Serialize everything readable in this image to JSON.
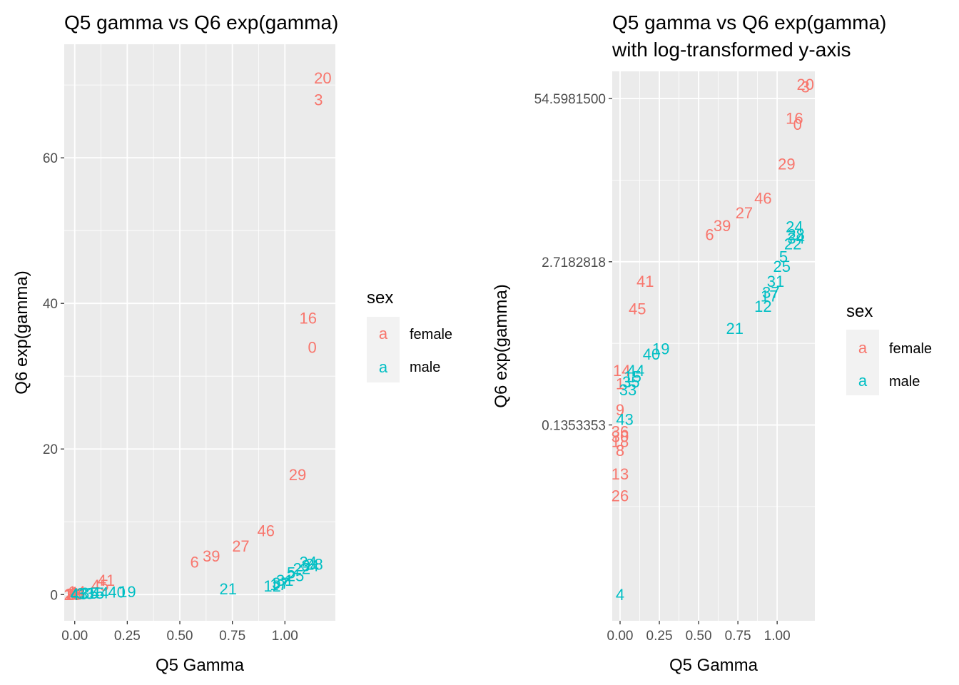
{
  "colors": {
    "female": "#F8766D",
    "male": "#00BFC4",
    "panel": "#EBEBEB",
    "grid": "#FFFFFF",
    "tick": "#333333"
  },
  "chart_data": [
    {
      "type": "scatter",
      "title": "Q5 gamma vs Q6 exp(gamma)",
      "xlabel": "Q5 Gamma",
      "ylabel": "Q6 exp(gamma)",
      "xlim": [
        -0.05,
        1.24
      ],
      "ylim": [
        -3.6,
        75.6
      ],
      "yscale": "linear",
      "x_ticks": [
        0,
        0.25,
        0.5,
        0.75,
        1
      ],
      "x_tick_labels": [
        "0.00",
        "0.25",
        "0.50",
        "0.75",
        "1.00"
      ],
      "y_ticks": [
        0,
        20,
        40,
        60
      ],
      "y_tick_labels": [
        "0",
        "20",
        "40",
        "60"
      ],
      "grid": true,
      "legend": {
        "title": "sex",
        "position": "right",
        "key_glyph": "a",
        "entries": [
          "female",
          "male"
        ]
      },
      "points": [
        {
          "label": "20",
          "x": 1.18,
          "y": 71.0,
          "group": "female"
        },
        {
          "label": "3",
          "x": 1.16,
          "y": 68.0,
          "group": "female"
        },
        {
          "label": "16",
          "x": 1.11,
          "y": 38.0,
          "group": "female"
        },
        {
          "label": "0",
          "x": 1.13,
          "y": 34.0,
          "group": "female"
        },
        {
          "label": "29",
          "x": 1.06,
          "y": 16.5,
          "group": "female"
        },
        {
          "label": "46",
          "x": 0.91,
          "y": 8.8,
          "group": "female"
        },
        {
          "label": "27",
          "x": 0.79,
          "y": 6.7,
          "group": "female"
        },
        {
          "label": "39",
          "x": 0.65,
          "y": 5.3,
          "group": "female"
        },
        {
          "label": "6",
          "x": 0.57,
          "y": 4.5,
          "group": "female"
        },
        {
          "label": "41",
          "x": 0.15,
          "y": 2.0,
          "group": "female"
        },
        {
          "label": "45",
          "x": 0.12,
          "y": 1.3,
          "group": "female"
        },
        {
          "label": "14",
          "x": 0.01,
          "y": 0.4,
          "group": "female"
        },
        {
          "label": "1",
          "x": 0.0,
          "y": 0.3,
          "group": "female"
        },
        {
          "label": "9",
          "x": 0.0,
          "y": 0.2,
          "group": "female"
        },
        {
          "label": "36",
          "x": 0.0,
          "y": 0.1,
          "group": "female"
        },
        {
          "label": "30",
          "x": 0.0,
          "y": 0.1,
          "group": "female"
        },
        {
          "label": "18",
          "x": -0.01,
          "y": 0.1,
          "group": "female"
        },
        {
          "label": "8",
          "x": -0.01,
          "y": 0.05,
          "group": "female"
        },
        {
          "label": "13",
          "x": -0.01,
          "y": 0.04,
          "group": "female"
        },
        {
          "label": "26",
          "x": -0.01,
          "y": 0.03,
          "group": "female"
        },
        {
          "label": "24",
          "x": 1.11,
          "y": 4.5,
          "group": "male"
        },
        {
          "label": "28",
          "x": 1.14,
          "y": 4.2,
          "group": "male"
        },
        {
          "label": "34",
          "x": 1.12,
          "y": 4.0,
          "group": "male"
        },
        {
          "label": "22",
          "x": 1.08,
          "y": 3.6,
          "group": "male"
        },
        {
          "label": "5",
          "x": 1.03,
          "y": 3.0,
          "group": "male"
        },
        {
          "label": "25",
          "x": 1.05,
          "y": 2.6,
          "group": "male"
        },
        {
          "label": "31",
          "x": 1.0,
          "y": 2.0,
          "group": "male"
        },
        {
          "label": "37",
          "x": 0.98,
          "y": 1.6,
          "group": "male"
        },
        {
          "label": "17",
          "x": 0.97,
          "y": 1.4,
          "group": "male"
        },
        {
          "label": "12",
          "x": 0.94,
          "y": 1.2,
          "group": "male"
        },
        {
          "label": "21",
          "x": 0.73,
          "y": 0.8,
          "group": "male"
        },
        {
          "label": "19",
          "x": 0.25,
          "y": 0.4,
          "group": "male"
        },
        {
          "label": "40",
          "x": 0.2,
          "y": 0.35,
          "group": "male"
        },
        {
          "label": "44",
          "x": 0.12,
          "y": 0.25,
          "group": "male"
        },
        {
          "label": "15",
          "x": 0.1,
          "y": 0.22,
          "group": "male"
        },
        {
          "label": "35",
          "x": 0.07,
          "y": 0.2,
          "group": "male"
        },
        {
          "label": "33",
          "x": 0.05,
          "y": 0.18,
          "group": "male"
        },
        {
          "label": "43",
          "x": 0.02,
          "y": 0.14,
          "group": "male"
        },
        {
          "label": "4",
          "x": 0.0,
          "y": 0.005,
          "group": "male"
        }
      ]
    },
    {
      "type": "scatter",
      "title": "Q5 gamma vs Q6 exp(gamma)\nwith log-transformed y-axis",
      "title_lines": [
        "Q5 gamma vs Q6 exp(gamma)",
        "with log-transformed y-axis"
      ],
      "xlabel": "Q5 Gamma",
      "ylabel": "Q6 exp(gamma)",
      "xlim": [
        -0.05,
        1.24
      ],
      "ylim_log": [
        -5.6,
        4.5
      ],
      "yscale": "log",
      "x_ticks": [
        0,
        0.25,
        0.5,
        0.75,
        1
      ],
      "x_tick_labels": [
        "0.00",
        "0.25",
        "0.50",
        "0.75",
        "1.00"
      ],
      "y_ticks": [
        0.1353353,
        2.7182818,
        54.59815
      ],
      "y_tick_labels": [
        "0.1353353",
        "2.7182818",
        "54.5981500"
      ],
      "grid": true,
      "legend": {
        "title": "sex",
        "position": "right",
        "key_glyph": "a",
        "entries": [
          "female",
          "male"
        ]
      },
      "points": [
        {
          "label": "20",
          "x": 1.18,
          "y": 71.0,
          "group": "female"
        },
        {
          "label": "3",
          "x": 1.18,
          "y": 68.0,
          "group": "female"
        },
        {
          "label": "16",
          "x": 1.11,
          "y": 38.0,
          "group": "female"
        },
        {
          "label": "0",
          "x": 1.13,
          "y": 34.0,
          "group": "female"
        },
        {
          "label": "29",
          "x": 1.06,
          "y": 16.5,
          "group": "female"
        },
        {
          "label": "46",
          "x": 0.91,
          "y": 8.8,
          "group": "female"
        },
        {
          "label": "27",
          "x": 0.79,
          "y": 6.7,
          "group": "female"
        },
        {
          "label": "39",
          "x": 0.65,
          "y": 5.3,
          "group": "female"
        },
        {
          "label": "6",
          "x": 0.57,
          "y": 4.5,
          "group": "female"
        },
        {
          "label": "41",
          "x": 0.16,
          "y": 1.9,
          "group": "female"
        },
        {
          "label": "45",
          "x": 0.11,
          "y": 1.15,
          "group": "female"
        },
        {
          "label": "14",
          "x": 0.01,
          "y": 0.37,
          "group": "female"
        },
        {
          "label": "1",
          "x": 0.0,
          "y": 0.29,
          "group": "female"
        },
        {
          "label": "9",
          "x": 0.0,
          "y": 0.18,
          "group": "female"
        },
        {
          "label": "36",
          "x": 0.0,
          "y": 0.12,
          "group": "female"
        },
        {
          "label": "30",
          "x": 0.0,
          "y": 0.11,
          "group": "female"
        },
        {
          "label": "18",
          "x": 0.0,
          "y": 0.1,
          "group": "female"
        },
        {
          "label": "8",
          "x": 0.0,
          "y": 0.085,
          "group": "female"
        },
        {
          "label": "13",
          "x": 0.0,
          "y": 0.055,
          "group": "female"
        },
        {
          "label": "26",
          "x": 0.0,
          "y": 0.037,
          "group": "female"
        },
        {
          "label": "24",
          "x": 1.11,
          "y": 5.2,
          "group": "male"
        },
        {
          "label": "28",
          "x": 1.12,
          "y": 4.5,
          "group": "male"
        },
        {
          "label": "34",
          "x": 1.12,
          "y": 4.2,
          "group": "male"
        },
        {
          "label": "22",
          "x": 1.1,
          "y": 3.8,
          "group": "male"
        },
        {
          "label": "5",
          "x": 1.04,
          "y": 3.0,
          "group": "male"
        },
        {
          "label": "25",
          "x": 1.03,
          "y": 2.5,
          "group": "male"
        },
        {
          "label": "31",
          "x": 0.99,
          "y": 1.9,
          "group": "male"
        },
        {
          "label": "37",
          "x": 0.96,
          "y": 1.55,
          "group": "male"
        },
        {
          "label": "17",
          "x": 0.95,
          "y": 1.45,
          "group": "male"
        },
        {
          "label": "12",
          "x": 0.91,
          "y": 1.2,
          "group": "male"
        },
        {
          "label": "21",
          "x": 0.73,
          "y": 0.8,
          "group": "male"
        },
        {
          "label": "19",
          "x": 0.26,
          "y": 0.55,
          "group": "male"
        },
        {
          "label": "40",
          "x": 0.2,
          "y": 0.5,
          "group": "male"
        },
        {
          "label": "44",
          "x": 0.1,
          "y": 0.37,
          "group": "male"
        },
        {
          "label": "15",
          "x": 0.08,
          "y": 0.33,
          "group": "male"
        },
        {
          "label": "35",
          "x": 0.07,
          "y": 0.3,
          "group": "male"
        },
        {
          "label": "33",
          "x": 0.05,
          "y": 0.26,
          "group": "male"
        },
        {
          "label": "43",
          "x": 0.03,
          "y": 0.15,
          "group": "male"
        },
        {
          "label": "4",
          "x": 0.0,
          "y": 0.006,
          "group": "male"
        }
      ]
    }
  ]
}
